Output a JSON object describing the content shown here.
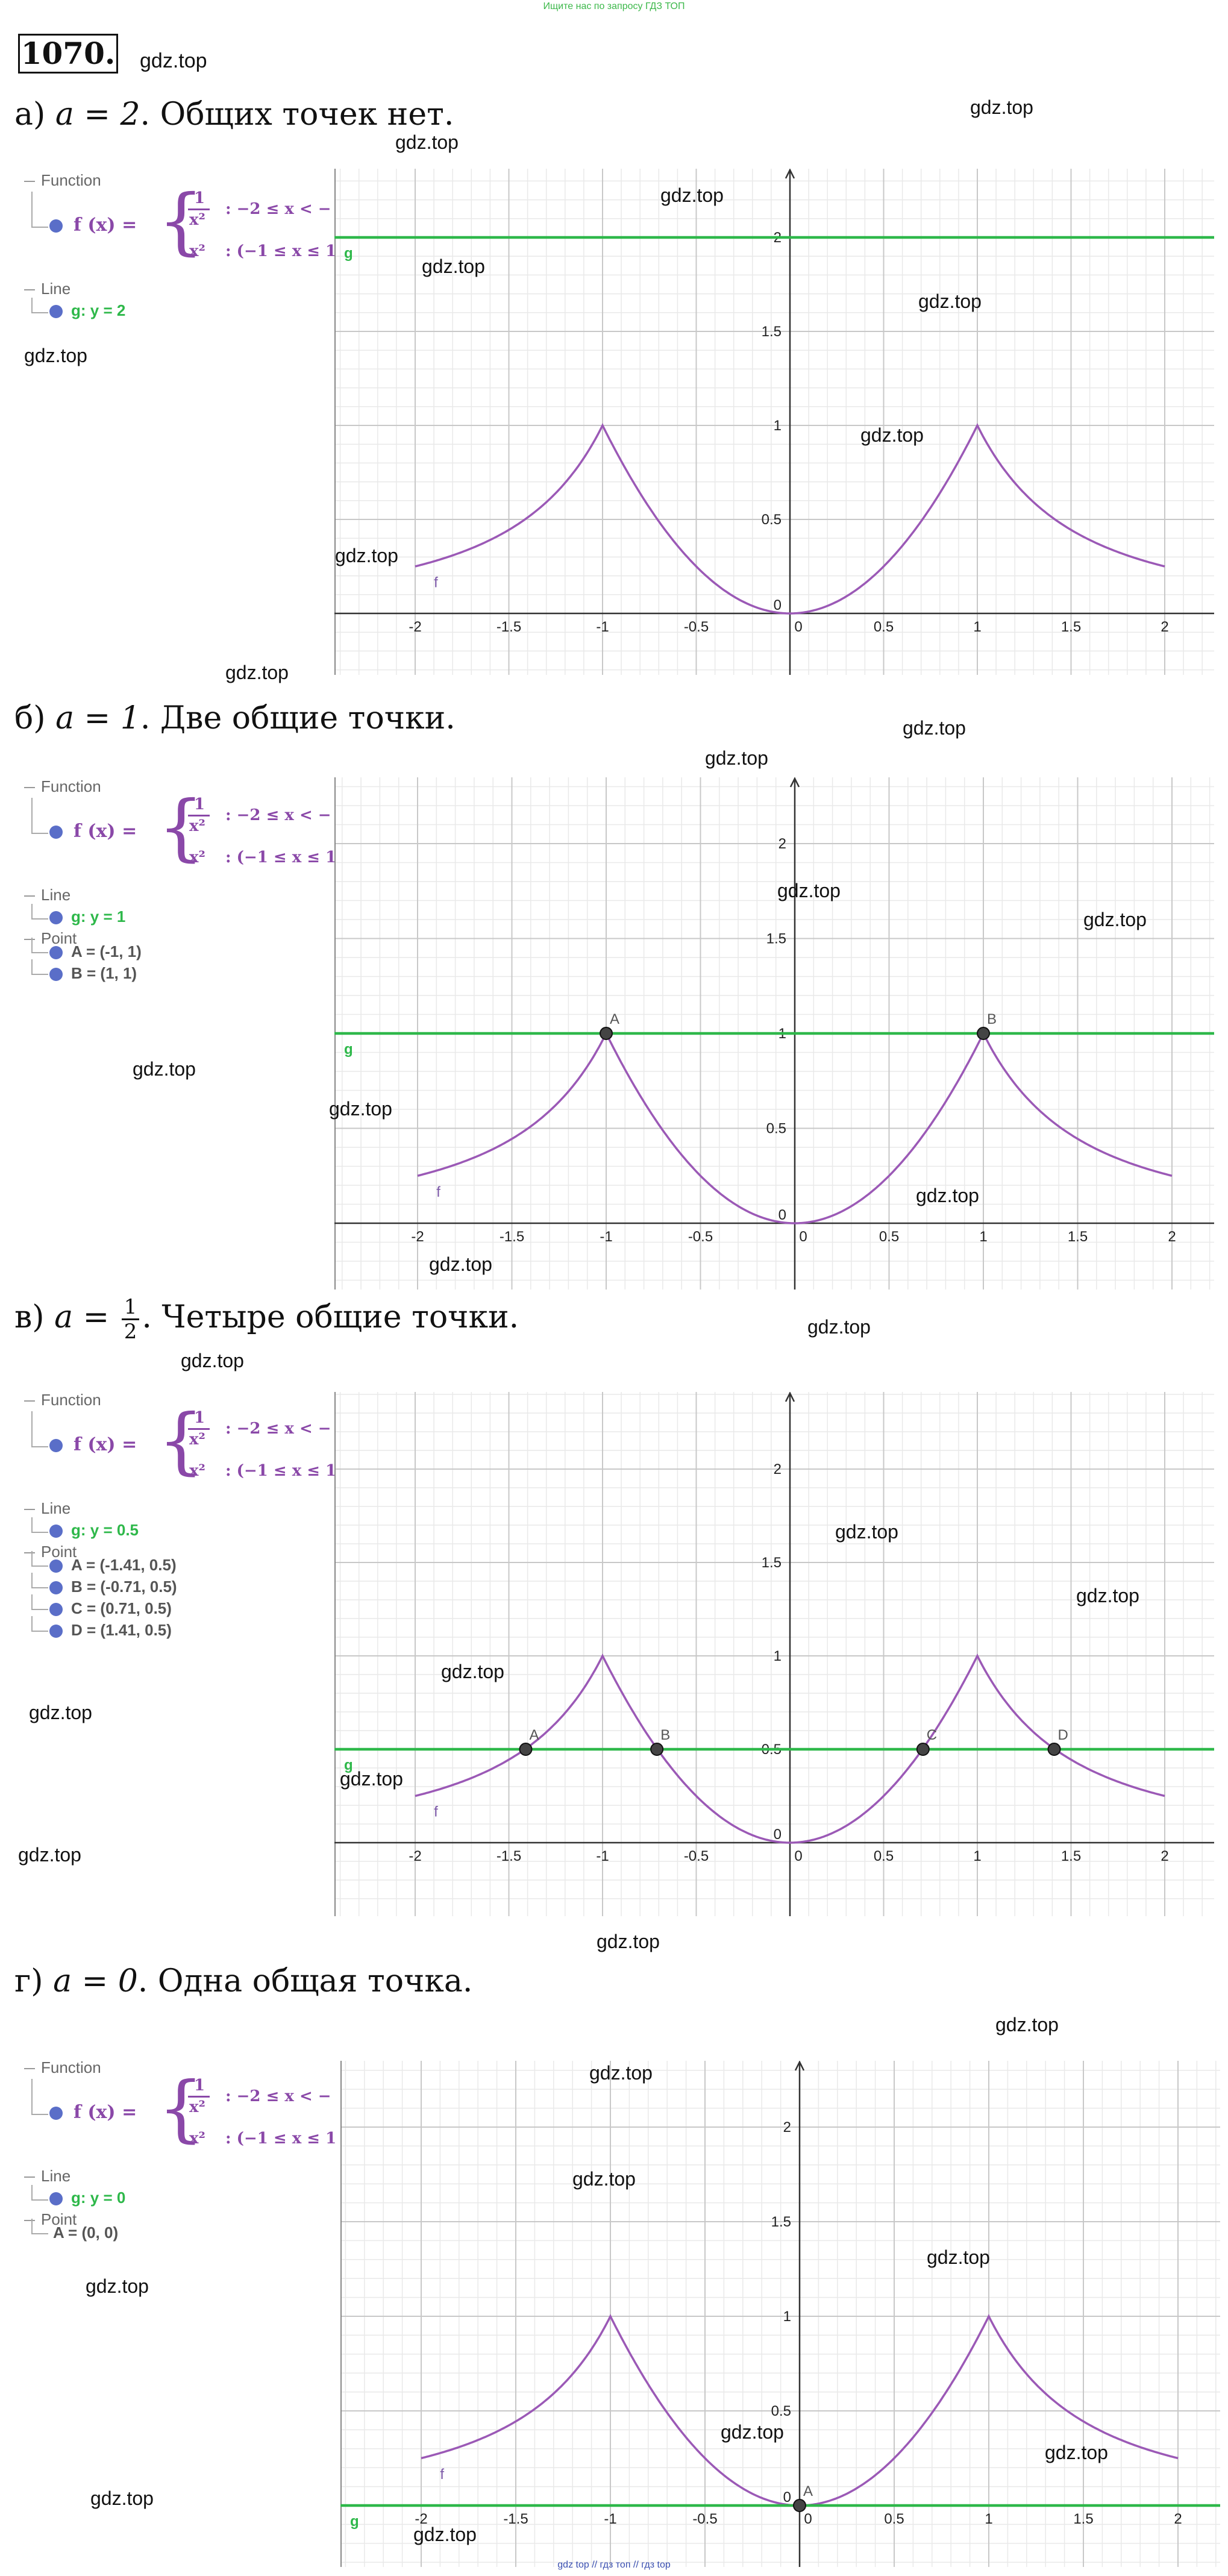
{
  "banner": "Ищите нас по запросу ГДЗ ТОП",
  "problem_number": "1070.",
  "site": "gdz.top",
  "footer": "gdz top  //  гдз топ  //  гдз top",
  "legend_labels": {
    "function": "Function",
    "line": "Line",
    "point": "Point",
    "f_lhs": "f (x) =",
    "piece1_num": "1",
    "piece1_den": "x²",
    "piece1_cond": ": −2 ≤ x < −",
    "piece2": "x²",
    "piece2_cond": ": (−1 ≤ x ≤ 1"
  },
  "parts": [
    {
      "letter": "а)",
      "a_expr": "a = 2",
      "text": ". Общих точек нет.",
      "line_label": "g: y = 2",
      "points": []
    },
    {
      "letter": "б)",
      "a_expr": "a = 1",
      "text": ". Две общие точки.",
      "line_label": "g: y = 1",
      "points": [
        "A = (-1, 1)",
        "B = (1, 1)"
      ]
    },
    {
      "letter": "в)",
      "a_expr": "a =",
      "a_num": "1",
      "a_den": "2",
      "text": ". Четыре общие точки.",
      "line_label": "g: y = 0.5",
      "points": [
        "A = (-1.41, 0.5)",
        "B = (-0.71, 0.5)",
        "C = (0.71, 0.5)",
        "D = (1.41, 0.5)"
      ]
    },
    {
      "letter": "г)",
      "a_expr": "a = 0",
      "text": ". Одна общая точка.",
      "line_label": "g: y = 0",
      "points": [
        "A = (0, 0)"
      ]
    }
  ],
  "chart_data": [
    {
      "type": "line",
      "title": "",
      "xlim": [
        -2.2,
        2.2
      ],
      "ylim": [
        -0.3,
        2.3
      ],
      "x_ticks": [
        "-2",
        "-1.5",
        "-1",
        "-0.5",
        "0",
        "0.5",
        "1",
        "1.5",
        "2"
      ],
      "y_ticks": [
        "0",
        "0.5",
        "1",
        "1.5",
        "2"
      ],
      "series": [
        {
          "name": "f",
          "piecewise": [
            {
              "expr": "1/x^2",
              "domain": [
                -2,
                -1
              ]
            },
            {
              "expr": "x^2",
              "domain": [
                -1,
                1
              ]
            },
            {
              "expr": "1/x^2",
              "domain": [
                1,
                2
              ]
            }
          ],
          "color": "#9b59b6"
        },
        {
          "name": "g",
          "expr": "y = 2",
          "y": 2,
          "color": "#2eb84a"
        }
      ],
      "points": [],
      "grid": true
    },
    {
      "type": "line",
      "title": "",
      "xlim": [
        -2.2,
        2.2
      ],
      "ylim": [
        -0.3,
        2.3
      ],
      "x_ticks": [
        "-2",
        "-1.5",
        "-1",
        "-0.5",
        "0",
        "0.5",
        "1",
        "1.5",
        "2"
      ],
      "y_ticks": [
        "0",
        "0.5",
        "1",
        "1.5",
        "2"
      ],
      "series": [
        {
          "name": "f",
          "piecewise": [
            {
              "expr": "1/x^2",
              "domain": [
                -2,
                -1
              ]
            },
            {
              "expr": "x^2",
              "domain": [
                -1,
                1
              ]
            },
            {
              "expr": "1/x^2",
              "domain": [
                1,
                2
              ]
            }
          ],
          "color": "#9b59b6"
        },
        {
          "name": "g",
          "expr": "y = 1",
          "y": 1,
          "color": "#2eb84a"
        }
      ],
      "points": [
        {
          "label": "A",
          "x": -1,
          "y": 1
        },
        {
          "label": "B",
          "x": 1,
          "y": 1
        }
      ],
      "grid": true
    },
    {
      "type": "line",
      "title": "",
      "xlim": [
        -2.2,
        2.2
      ],
      "ylim": [
        -0.3,
        2.3
      ],
      "x_ticks": [
        "-2",
        "-1.5",
        "-1",
        "-0.5",
        "0",
        "0.5",
        "1",
        "1.5",
        "2"
      ],
      "y_ticks": [
        "0",
        "0.5",
        "1",
        "1.5",
        "2"
      ],
      "series": [
        {
          "name": "f",
          "piecewise": [
            {
              "expr": "1/x^2",
              "domain": [
                -2,
                -1
              ]
            },
            {
              "expr": "x^2",
              "domain": [
                -1,
                1
              ]
            },
            {
              "expr": "1/x^2",
              "domain": [
                1,
                2
              ]
            }
          ],
          "color": "#9b59b6"
        },
        {
          "name": "g",
          "expr": "y = 0.5",
          "y": 0.5,
          "color": "#2eb84a"
        }
      ],
      "points": [
        {
          "label": "A",
          "x": -1.41,
          "y": 0.5
        },
        {
          "label": "B",
          "x": -0.71,
          "y": 0.5
        },
        {
          "label": "C",
          "x": 0.71,
          "y": 0.5
        },
        {
          "label": "D",
          "x": 1.41,
          "y": 0.5
        }
      ],
      "grid": true
    },
    {
      "type": "line",
      "title": "",
      "xlim": [
        -2.2,
        2.2
      ],
      "ylim": [
        -0.3,
        2.3
      ],
      "x_ticks": [
        "-2",
        "-1.5",
        "-1",
        "-0.5",
        "0",
        "0.5",
        "1",
        "1.5",
        "2"
      ],
      "y_ticks": [
        "0",
        "0.5",
        "1",
        "1.5",
        "2"
      ],
      "series": [
        {
          "name": "f",
          "piecewise": [
            {
              "expr": "1/x^2",
              "domain": [
                -2,
                -1
              ]
            },
            {
              "expr": "x^2",
              "domain": [
                -1,
                1
              ]
            },
            {
              "expr": "1/x^2",
              "domain": [
                1,
                2
              ]
            }
          ],
          "color": "#9b59b6"
        },
        {
          "name": "g",
          "expr": "y = 0",
          "y": 0,
          "color": "#2eb84a"
        }
      ],
      "points": [
        {
          "label": "A",
          "x": 0,
          "y": 0
        }
      ],
      "grid": true
    }
  ]
}
